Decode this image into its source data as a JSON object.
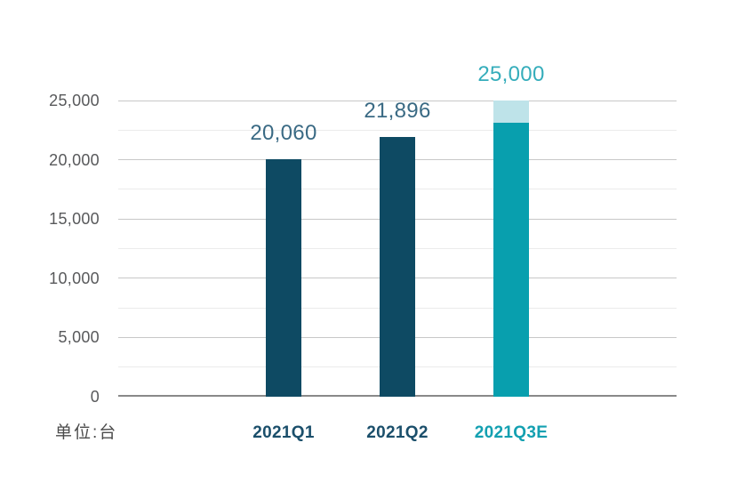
{
  "chart_data": {
    "type": "bar",
    "title": "",
    "xlabel": "",
    "ylabel": "",
    "unit_label": "单位:台",
    "categories": [
      "2021Q1",
      "2021Q2",
      "2021Q3E"
    ],
    "values": [
      20060,
      21896,
      25000
    ],
    "data_labels": [
      "20,060",
      "21,896",
      "25,000"
    ],
    "q3e_segments": {
      "solid_value": 23100,
      "light_cap_top": 25000
    },
    "ylim": [
      0,
      25000
    ],
    "yticks": [
      0,
      5000,
      10000,
      15000,
      20000,
      25000
    ],
    "ytick_labels": [
      "0",
      "5,000",
      "10,000",
      "15,000",
      "20,000",
      "25,000"
    ],
    "minor_yticks": [
      2500,
      7500,
      12500,
      17500,
      22500
    ],
    "grid": "horizontal major and minor gridlines, no vertical grid",
    "legend": "none",
    "bar_colors": [
      "#0e4a63",
      "#0e4a63",
      "#089fae"
    ],
    "q3e_cap_color": "#bee3e9",
    "value_label_colors": [
      "#3a6a84",
      "#3a6a84",
      "#35adbb"
    ],
    "xlabel_colors": [
      "#1b4f6b",
      "#1b4f6b",
      "#13a0b1"
    ],
    "colors": {
      "ytick_text": "#58595b",
      "unit_text": "#4c4c4c",
      "gridline_major": "#c8c8c8",
      "gridline_minor": "#ebebeb",
      "axis_line": "#898989",
      "background": "#ffffff"
    }
  }
}
